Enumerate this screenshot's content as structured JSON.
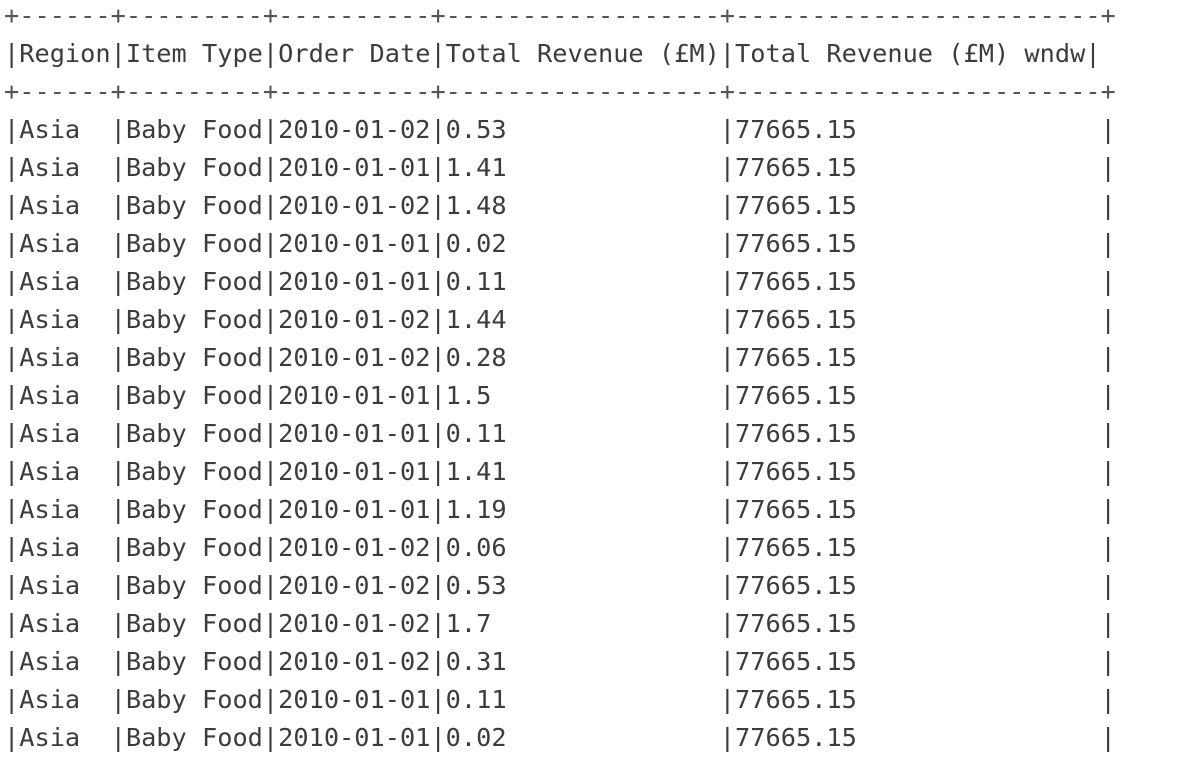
{
  "output": {
    "border_top": "+------+---------+----------+------------------+------------------------+",
    "header_line": "|Region|Item Type|Order Date|Total Revenue (£M)|Total Revenue (£M) wndw|",
    "border_mid": "+------+---------+----------+------------------+------------------------+",
    "columns": [
      "Region",
      "Item Type",
      "Order Date",
      "Total Revenue (£M)",
      "Total Revenue (£M) wndw"
    ],
    "rows": [
      {
        "region": "Asia",
        "item_type": "Baby Food",
        "order_date": "2010-01-02",
        "revenue": "0.53",
        "revenue_wndw": "77665.15"
      },
      {
        "region": "Asia",
        "item_type": "Baby Food",
        "order_date": "2010-01-01",
        "revenue": "1.41",
        "revenue_wndw": "77665.15"
      },
      {
        "region": "Asia",
        "item_type": "Baby Food",
        "order_date": "2010-01-02",
        "revenue": "1.48",
        "revenue_wndw": "77665.15"
      },
      {
        "region": "Asia",
        "item_type": "Baby Food",
        "order_date": "2010-01-01",
        "revenue": "0.02",
        "revenue_wndw": "77665.15"
      },
      {
        "region": "Asia",
        "item_type": "Baby Food",
        "order_date": "2010-01-01",
        "revenue": "0.11",
        "revenue_wndw": "77665.15"
      },
      {
        "region": "Asia",
        "item_type": "Baby Food",
        "order_date": "2010-01-02",
        "revenue": "1.44",
        "revenue_wndw": "77665.15"
      },
      {
        "region": "Asia",
        "item_type": "Baby Food",
        "order_date": "2010-01-02",
        "revenue": "0.28",
        "revenue_wndw": "77665.15"
      },
      {
        "region": "Asia",
        "item_type": "Baby Food",
        "order_date": "2010-01-01",
        "revenue": "1.5",
        "revenue_wndw": "77665.15"
      },
      {
        "region": "Asia",
        "item_type": "Baby Food",
        "order_date": "2010-01-01",
        "revenue": "0.11",
        "revenue_wndw": "77665.15"
      },
      {
        "region": "Asia",
        "item_type": "Baby Food",
        "order_date": "2010-01-01",
        "revenue": "1.41",
        "revenue_wndw": "77665.15"
      },
      {
        "region": "Asia",
        "item_type": "Baby Food",
        "order_date": "2010-01-01",
        "revenue": "1.19",
        "revenue_wndw": "77665.15"
      },
      {
        "region": "Asia",
        "item_type": "Baby Food",
        "order_date": "2010-01-02",
        "revenue": "0.06",
        "revenue_wndw": "77665.15"
      },
      {
        "region": "Asia",
        "item_type": "Baby Food",
        "order_date": "2010-01-02",
        "revenue": "0.53",
        "revenue_wndw": "77665.15"
      },
      {
        "region": "Asia",
        "item_type": "Baby Food",
        "order_date": "2010-01-02",
        "revenue": "1.7",
        "revenue_wndw": "77665.15"
      },
      {
        "region": "Asia",
        "item_type": "Baby Food",
        "order_date": "2010-01-02",
        "revenue": "0.31",
        "revenue_wndw": "77665.15"
      },
      {
        "region": "Asia",
        "item_type": "Baby Food",
        "order_date": "2010-01-01",
        "revenue": "0.11",
        "revenue_wndw": "77665.15"
      },
      {
        "region": "Asia",
        "item_type": "Baby Food",
        "order_date": "2010-01-01",
        "revenue": "0.02",
        "revenue_wndw": "77665.15"
      }
    ]
  }
}
